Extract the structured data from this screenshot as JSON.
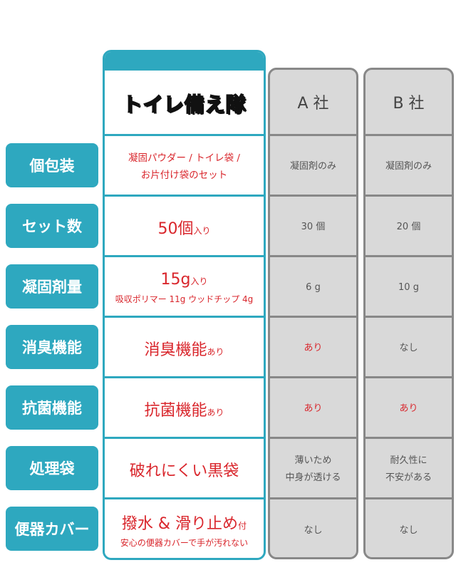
{
  "colors": {
    "accent": "#2ea8bf",
    "highlight_text": "#d9262c",
    "competitor_bg": "#d9d9d9"
  },
  "row_labels": [
    "個包装",
    "セット数",
    "凝固剤量",
    "消臭機能",
    "抗菌機能",
    "処理袋",
    "便器カバー"
  ],
  "brand": {
    "name": "トイレ備え隊",
    "r0": [
      "凝固パウダー / トイレ袋 /",
      "お片付け袋のセット"
    ],
    "r1": {
      "main": "50個",
      "suffix": "入り"
    },
    "r2": {
      "main": "15g",
      "suffix": "入り",
      "sub": "吸収ポリマー 11g ウッドチップ 4g"
    },
    "r3": {
      "main": "消臭機能",
      "suffix": "あり"
    },
    "r4": {
      "main": "抗菌機能",
      "suffix": "あり"
    },
    "r5": {
      "main": "破れにくい黒袋"
    },
    "r6": {
      "main": "撥水 & 滑り止め",
      "suffix": "付",
      "sub": "安心の便器カバーで手が汚れない"
    }
  },
  "a": {
    "name": "A 社",
    "values": [
      "凝固剤のみ",
      "30 個",
      "6 g",
      "あり",
      "あり",
      [
        "薄いため",
        "中身が透ける"
      ],
      "なし"
    ]
  },
  "b": {
    "name": "B 社",
    "values": [
      "凝固剤のみ",
      "20 個",
      "10 g",
      "なし",
      "あり",
      [
        "耐久性に",
        "不安がある"
      ],
      "なし"
    ]
  }
}
